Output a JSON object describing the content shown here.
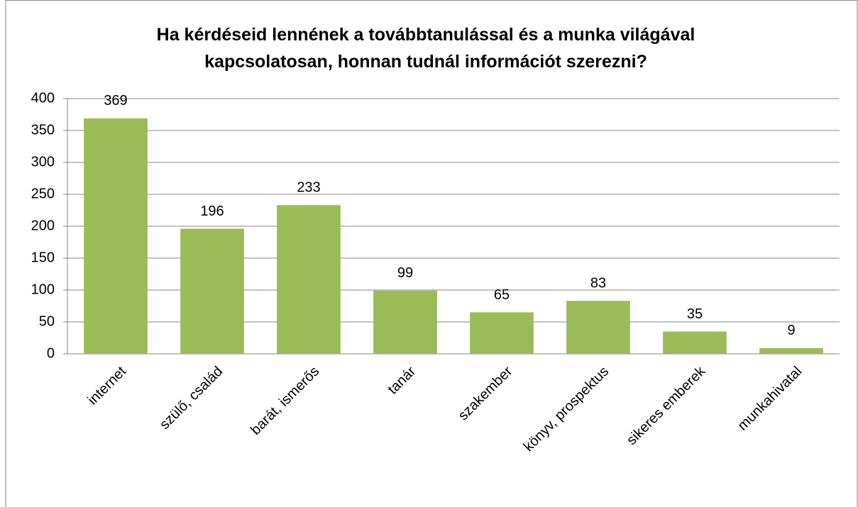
{
  "chart_data": {
    "type": "bar",
    "title": "Ha kérdéseid lennének a továbbtanulással és a munka világával kapcsolatosan, honnan tudnál információt szerezni?",
    "categories": [
      "internet",
      "szülő, család",
      "barát, ismerős",
      "tanár",
      "szakember",
      "könyv, prospektus",
      "sikeres emberek",
      "munkahivatal"
    ],
    "values": [
      369,
      196,
      233,
      99,
      65,
      83,
      35,
      9
    ],
    "color": "#9bbb59",
    "ylim": [
      0,
      400
    ],
    "yticks": [
      0,
      50,
      100,
      150,
      200,
      250,
      300,
      350,
      400
    ],
    "grid": true
  }
}
